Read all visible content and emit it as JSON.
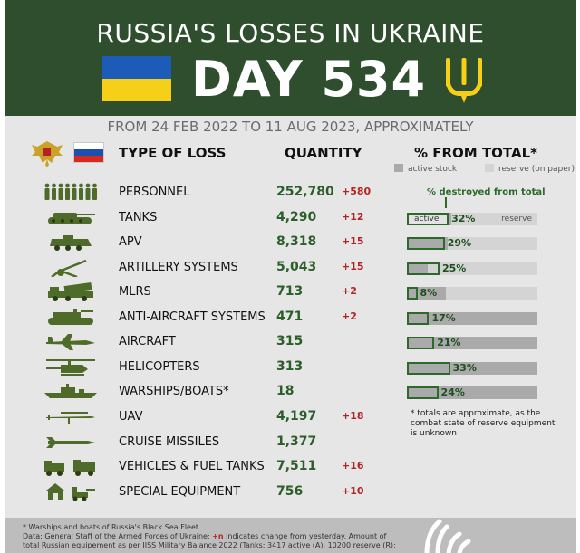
{
  "header": {
    "title": "RUSSIA'S LOSSES IN UKRAINE",
    "day_label": "DAY 534",
    "subtitle": "FROM 24 FEB 2022 TO 11 AUG 2023, APPROXIMATELY"
  },
  "columns": {
    "type": "TYPE OF LOSS",
    "quantity": "QUANTITY",
    "percent": "% FROM TOTAL*",
    "legend_active": "active stock",
    "legend_reserve": "reserve (on paper)",
    "destroyed_note": "% destroyed from total",
    "bar_active_label": "active",
    "bar_reserve_label": "reserve"
  },
  "colors": {
    "header_bg": "#2f4e2e",
    "quantity_green": "#2c5e2a",
    "change_red": "#b52222",
    "active_grey": "#aaaaaa",
    "reserve_grey": "#d4d4d4",
    "ukraine_blue": "#1d5bb8",
    "ukraine_yellow": "#f6cf18"
  },
  "rows": [
    {
      "icon": "soldiers-icon",
      "label": "PERSONNEL",
      "quantity": "252,780",
      "change": "+580"
    },
    {
      "icon": "tank-icon",
      "label": "TANKS",
      "quantity": "4,290",
      "change": "+12",
      "bar": {
        "percent": "32%",
        "destroyed": 0.32,
        "active": 0.34,
        "reserve_start": 0.34
      }
    },
    {
      "icon": "apv-icon",
      "label": "APV",
      "quantity": "8,318",
      "change": "+15",
      "bar": {
        "percent": "29%",
        "destroyed": 0.29,
        "active": 0.31,
        "reserve_start": 0.31
      }
    },
    {
      "icon": "artillery-icon",
      "label": "ARTILLERY SYSTEMS",
      "quantity": "5,043",
      "change": "+15",
      "bar": {
        "percent": "25%",
        "destroyed": 0.25,
        "active": 0.16,
        "reserve_start": 0.16
      }
    },
    {
      "icon": "mlrs-icon",
      "label": "MLRS",
      "quantity": "713",
      "change": "+2",
      "bar": {
        "percent": "8%",
        "destroyed": 0.08,
        "active": 0.3,
        "reserve_start": 0.3
      }
    },
    {
      "icon": "anti-aircraft-icon",
      "label": "ANTI-AIRCRAFT SYSTEMS",
      "quantity": "471",
      "change": "+2",
      "bar": {
        "percent": "17%",
        "destroyed": 0.17,
        "active": 1.0,
        "reserve_start": 1.0
      }
    },
    {
      "icon": "aircraft-icon",
      "label": "AIRCRAFT",
      "quantity": "315",
      "change": "",
      "bar": {
        "percent": "21%",
        "destroyed": 0.21,
        "active": 1.0,
        "reserve_start": 1.0
      }
    },
    {
      "icon": "helicopter-icon",
      "label": "HELICOPTERS",
      "quantity": "313",
      "change": "",
      "bar": {
        "percent": "33%",
        "destroyed": 0.33,
        "active": 1.0,
        "reserve_start": 1.0
      }
    },
    {
      "icon": "warship-icon",
      "label": "WARSHIPS/BOATS*",
      "quantity": "18",
      "change": "",
      "bar": {
        "percent": "24%",
        "destroyed": 0.24,
        "active": 1.0,
        "reserve_start": 1.0
      }
    },
    {
      "icon": "uav-icon",
      "label": "UAV",
      "quantity": "4,197",
      "change": "+18"
    },
    {
      "icon": "cruise-missile-icon",
      "label": "CRUISE MISSILES",
      "quantity": "1,377",
      "change": ""
    },
    {
      "icon": "trucks-icon",
      "label": "VEHICLES & FUEL TANKS",
      "quantity": "7,511",
      "change": "+16"
    },
    {
      "icon": "special-equipment-icon",
      "label": "SPECIAL EQUIPMENT",
      "quantity": "756",
      "change": "+10"
    }
  ],
  "footnote": "* totals are approximate, as the combat state of reserve equipment is unknown",
  "footer": {
    "line1": "* Warships and boats of Russia's Black Sea Fleet",
    "line2_a": "Data: General Staff of the Armed Forces of Ukraine; ",
    "line2_plus": "+n",
    "line2_b": " indicates change from yesterday. Amount of",
    "line3": "total Russian equipement as per IISS Military Balance 2022 (Tanks: 3417 active (A), 10200 reserve (R);"
  }
}
